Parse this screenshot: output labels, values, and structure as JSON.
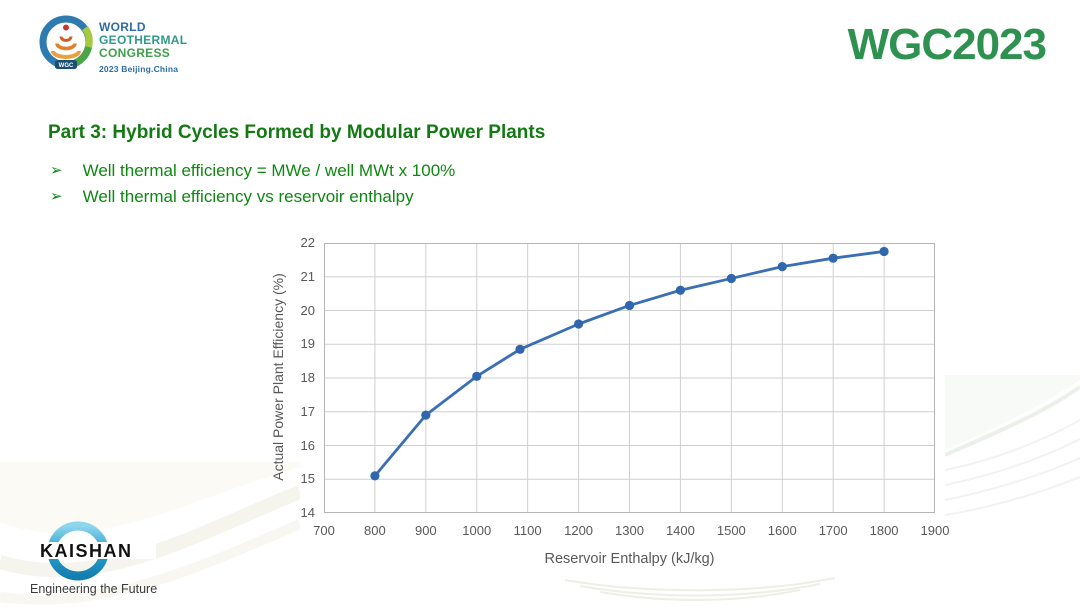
{
  "slide": {
    "header": {
      "logo": {
        "lines": [
          "World",
          "Geothermal",
          "Congress"
        ],
        "subtitle": "2023 Beijing.China",
        "badge": "WGC"
      },
      "brand": "WGC2023"
    },
    "title": "Part 3: Hybrid Cycles Formed by Modular Power Plants",
    "bullet_marker": "➢",
    "bullets": [
      "Well thermal efficiency = MWe / well MWt x 100%",
      "Well thermal efficiency vs reservoir enthalpy"
    ],
    "footer": {
      "logo_text": "KAISHAN",
      "tagline": "Engineering the Future"
    }
  },
  "colors": {
    "brand_green": "#2e9150",
    "title_green": "#137a13",
    "bullet_green": "#0f8712",
    "line_blue": "#3a6fb5",
    "marker_blue": "#2f66ad",
    "grid_gray": "#cfcfcf",
    "plot_border_gray": "#b5b5b5",
    "tick_gray": "#595959"
  },
  "chart_data": {
    "type": "line",
    "title": "",
    "xlabel": "Reservoir Enthalpy (kJ/kg)",
    "ylabel": "Actual Power Plant Efficiency (%)",
    "x": [
      800,
      900,
      1000,
      1085,
      1200,
      1300,
      1400,
      1500,
      1600,
      1700,
      1800
    ],
    "y": [
      15.1,
      16.9,
      18.05,
      18.85,
      19.6,
      20.15,
      20.6,
      20.95,
      21.3,
      21.55,
      21.75
    ],
    "series_name": "Actual power plant efficiency",
    "xlim": [
      700,
      1900
    ],
    "ylim": [
      14,
      22
    ],
    "x_ticks": [
      700,
      800,
      900,
      1000,
      1100,
      1200,
      1300,
      1400,
      1500,
      1600,
      1700,
      1800,
      1900
    ],
    "y_ticks": [
      14,
      15,
      16,
      17,
      18,
      19,
      20,
      21,
      22
    ],
    "grid": true,
    "legend": false,
    "marker": "circle"
  }
}
